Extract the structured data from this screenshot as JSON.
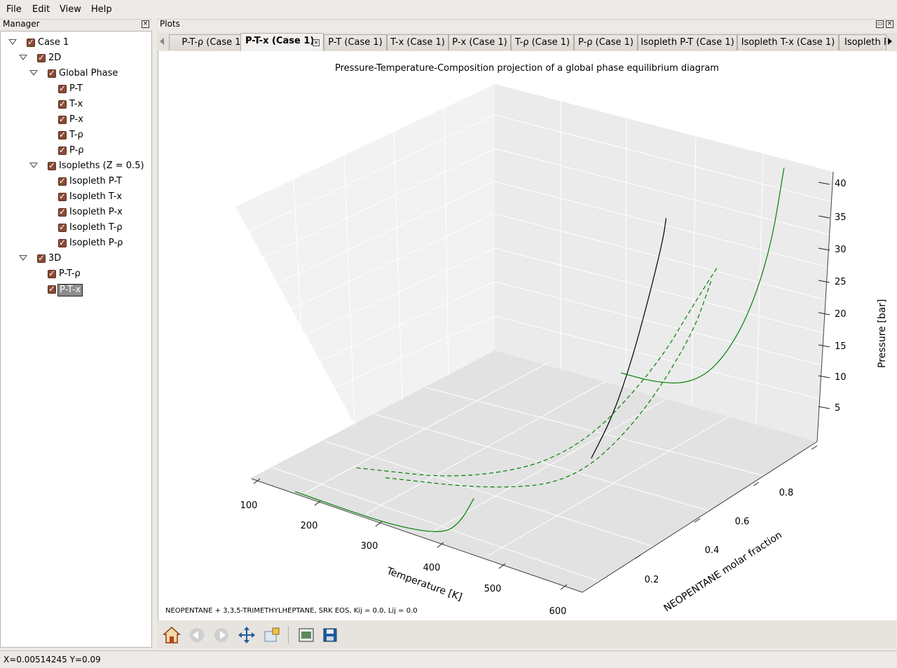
{
  "menu": {
    "file": "File",
    "edit": "Edit",
    "view": "View",
    "help": "Help"
  },
  "manager": {
    "title": "Manager",
    "tree": [
      {
        "label": "Case 1"
      },
      {
        "label": "2D"
      },
      {
        "label": "Global Phase"
      },
      {
        "label": "P-T"
      },
      {
        "label": "T-x"
      },
      {
        "label": "P-x"
      },
      {
        "label": "T-ρ"
      },
      {
        "label": "P-ρ"
      },
      {
        "label": "Isopleths (Z = 0.5)"
      },
      {
        "label": "Isopleth P-T"
      },
      {
        "label": "Isopleth T-x"
      },
      {
        "label": "Isopleth P-x"
      },
      {
        "label": "Isopleth T-ρ"
      },
      {
        "label": "Isopleth P-ρ"
      },
      {
        "label": "3D"
      },
      {
        "label": "P-T-ρ"
      },
      {
        "label": "P-T-x"
      }
    ],
    "selected": "P-T-x"
  },
  "plots": {
    "title": "Plots",
    "tabs": [
      {
        "label": "P-T-ρ (Case 1)"
      },
      {
        "label": "P-T-x (Case 1)"
      },
      {
        "label": "P-T (Case 1)"
      },
      {
        "label": "T-x (Case 1)"
      },
      {
        "label": "P-x (Case 1)"
      },
      {
        "label": "T-ρ (Case 1)"
      },
      {
        "label": "P-ρ (Case 1)"
      },
      {
        "label": "Isopleth P-T (Case 1)"
      },
      {
        "label": "Isopleth T-x (Case 1)"
      },
      {
        "label": "Isopleth P"
      }
    ],
    "active_tab": "P-T-x (Case 1)"
  },
  "chart_data": {
    "type": "line",
    "projection": "3d",
    "title": "Pressure-Temperature-Composition projection of a global phase equilibrium diagram",
    "xlabel": "Temperature [K]",
    "ylabel": "NEOPENTANE molar fraction",
    "zlabel": "Pressure [bar]",
    "x_ticks": [
      "100",
      "200",
      "300",
      "400",
      "500",
      "600"
    ],
    "y_ticks": [
      "0.2",
      "0.4",
      "0.6",
      "0.8"
    ],
    "z_ticks": [
      "5",
      "10",
      "15",
      "20",
      "25",
      "30",
      "35",
      "40"
    ],
    "xlim": [
      50,
      620
    ],
    "ylim": [
      0,
      1
    ],
    "zlim": [
      0,
      42
    ],
    "grid": true,
    "footnote": "NEOPENTANE + 3,3,5-TRIMETHYLHEPTANE, SRK EOS, Kij = 0.0, Lij = 0.0",
    "series": [
      {
        "color": "#000000",
        "style": "solid",
        "points": [
          [
            433.0,
            0.5,
            3.0
          ],
          [
            470,
            0.5,
            10
          ],
          [
            500,
            0.5,
            18
          ],
          [
            525,
            0.5,
            26
          ],
          [
            545,
            0.5,
            33
          ],
          [
            558,
            0.5,
            38
          ],
          [
            562,
            0.5,
            40.5
          ]
        ]
      },
      {
        "color": "#008000",
        "style": "solid",
        "points": [
          [
            125,
            0.0,
            0.3
          ],
          [
            200,
            0.0,
            0.2
          ],
          [
            300,
            0.0,
            0.3
          ],
          [
            380,
            0.0,
            1.5
          ],
          [
            410,
            0.0,
            4
          ],
          [
            433,
            0.0,
            8
          ]
        ]
      },
      {
        "color": "#008000",
        "style": "solid",
        "points": [
          [
            282,
            1.0,
            0.2
          ],
          [
            340,
            1.0,
            0.5
          ],
          [
            400,
            1.0,
            2
          ],
          [
            450,
            1.0,
            6
          ],
          [
            500,
            1.0,
            14
          ],
          [
            540,
            1.0,
            25
          ],
          [
            563,
            1.0,
            37
          ]
        ]
      },
      {
        "color": "#008000",
        "style": "dashed",
        "points": [
          [
            150,
            0.2,
            0.1
          ],
          [
            300,
            0.3,
            0.5
          ],
          [
            420,
            0.45,
            4
          ],
          [
            500,
            0.6,
            15
          ],
          [
            540,
            0.7,
            25
          ],
          [
            550,
            0.75,
            28
          ]
        ]
      },
      {
        "color": "#008000",
        "style": "dashed",
        "points": [
          [
            200,
            0.2,
            0.1
          ],
          [
            340,
            0.3,
            0.3
          ],
          [
            440,
            0.4,
            2
          ],
          [
            510,
            0.5,
            10
          ],
          [
            545,
            0.65,
            20
          ],
          [
            552,
            0.72,
            27
          ]
        ]
      }
    ]
  },
  "toolbar": {
    "icons": [
      "home-icon",
      "back-icon",
      "forward-icon",
      "pan-icon",
      "edit-axis-icon",
      "subplot-config-icon",
      "save-icon"
    ]
  },
  "status": {
    "text": "X=0.00514245 Y=0.09"
  }
}
